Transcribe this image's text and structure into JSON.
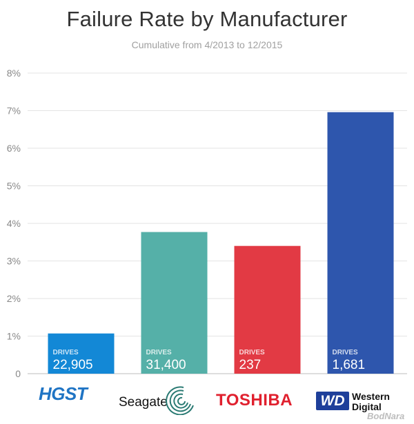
{
  "chart_data": {
    "type": "bar",
    "title": "Failure Rate by Manufacturer",
    "subtitle": "Cumulative from 4/2013 to 12/2015",
    "categories": [
      "HGST",
      "Seagate",
      "TOSHIBA",
      "Western Digital"
    ],
    "values": [
      1.07,
      3.77,
      3.4,
      6.96
    ],
    "drive_counts": [
      "22,905",
      "31,400",
      "237",
      "1,681"
    ],
    "drives_label": "DRIVES",
    "colors": [
      "#1388d6",
      "#55b0a8",
      "#e23a44",
      "#2e56ad"
    ],
    "ylim": [
      0,
      8
    ],
    "yticks": [
      "0",
      "1%",
      "2%",
      "3%",
      "4%",
      "5%",
      "6%",
      "7%",
      "8%"
    ],
    "grid": true
  },
  "logos": {
    "hgst": "HGST",
    "seagate": "Seagate",
    "toshiba": "TOSHIBA",
    "wd_mark": "WD",
    "wd_line1": "Western",
    "wd_line2": "Digital"
  },
  "watermark": "BodNara"
}
